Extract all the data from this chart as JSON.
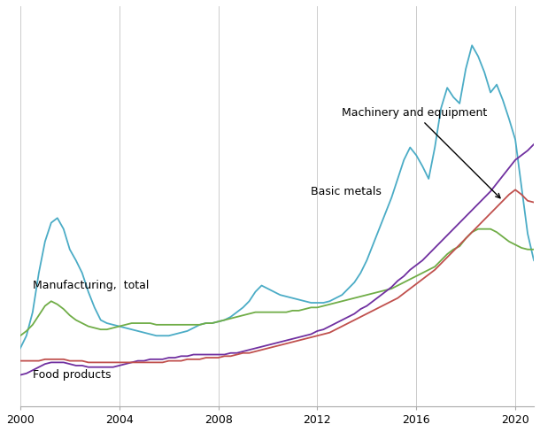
{
  "background_color": "#ffffff",
  "grid_color": "#cccccc",
  "series": {
    "basic_metals": {
      "color": "#4bacc6",
      "label": "Basic metals"
    },
    "manufacturing_total": {
      "color": "#70ad47",
      "label": "Manufacturing,  total"
    },
    "food_products": {
      "color": "#7030a0",
      "label": "Food products"
    },
    "machinery": {
      "color": "#c0504d",
      "label": "Machinery and equipment"
    }
  },
  "x_tick_labels": [
    "2000",
    "2004",
    "2008",
    "2012",
    "2016",
    "2020"
  ],
  "ylim": [
    55,
    310
  ],
  "xlim": [
    0,
    83
  ],
  "basic_metals": [
    92,
    100,
    115,
    140,
    160,
    172,
    175,
    168,
    155,
    148,
    140,
    128,
    118,
    110,
    108,
    107,
    106,
    105,
    104,
    103,
    102,
    101,
    100,
    100,
    100,
    101,
    102,
    103,
    105,
    107,
    108,
    108,
    109,
    110,
    112,
    115,
    118,
    122,
    128,
    132,
    130,
    128,
    126,
    125,
    124,
    123,
    122,
    121,
    121,
    121,
    122,
    124,
    126,
    130,
    134,
    140,
    148,
    158,
    168,
    178,
    188,
    200,
    212,
    220,
    215,
    208,
    200,
    220,
    245,
    258,
    252,
    248,
    270,
    285,
    278,
    268,
    255,
    260,
    250,
    238,
    225,
    195,
    165,
    148
  ],
  "manufacturing_total": [
    100,
    103,
    107,
    113,
    119,
    122,
    120,
    117,
    113,
    110,
    108,
    106,
    105,
    104,
    104,
    105,
    106,
    107,
    108,
    108,
    108,
    108,
    107,
    107,
    107,
    107,
    107,
    107,
    107,
    107,
    108,
    108,
    109,
    110,
    111,
    112,
    113,
    114,
    115,
    115,
    115,
    115,
    115,
    115,
    116,
    116,
    117,
    118,
    118,
    119,
    120,
    121,
    122,
    123,
    124,
    125,
    126,
    127,
    128,
    129,
    130,
    132,
    134,
    136,
    138,
    140,
    142,
    144,
    148,
    152,
    155,
    157,
    162,
    166,
    168,
    168,
    168,
    166,
    163,
    160,
    158,
    156,
    155,
    155
  ],
  "food_products": [
    75,
    76,
    78,
    80,
    82,
    83,
    83,
    83,
    82,
    81,
    81,
    80,
    80,
    80,
    80,
    80,
    81,
    82,
    83,
    84,
    84,
    85,
    85,
    85,
    86,
    86,
    87,
    87,
    88,
    88,
    88,
    88,
    88,
    88,
    89,
    89,
    90,
    91,
    92,
    93,
    94,
    95,
    96,
    97,
    98,
    99,
    100,
    101,
    103,
    104,
    106,
    108,
    110,
    112,
    114,
    117,
    119,
    122,
    125,
    128,
    131,
    135,
    138,
    142,
    145,
    148,
    152,
    156,
    160,
    164,
    168,
    172,
    176,
    180,
    184,
    188,
    192,
    197,
    202,
    207,
    212,
    215,
    218,
    222
  ],
  "machinery": [
    84,
    84,
    84,
    84,
    85,
    85,
    85,
    85,
    84,
    84,
    84,
    83,
    83,
    83,
    83,
    83,
    83,
    83,
    83,
    83,
    83,
    83,
    83,
    83,
    84,
    84,
    84,
    85,
    85,
    85,
    86,
    86,
    86,
    87,
    87,
    88,
    89,
    89,
    90,
    91,
    92,
    93,
    94,
    95,
    96,
    97,
    98,
    99,
    100,
    101,
    102,
    104,
    106,
    108,
    110,
    112,
    114,
    116,
    118,
    120,
    122,
    124,
    127,
    130,
    133,
    136,
    139,
    142,
    146,
    150,
    154,
    158,
    162,
    166,
    170,
    174,
    178,
    182,
    186,
    190,
    193,
    190,
    186,
    185
  ]
}
